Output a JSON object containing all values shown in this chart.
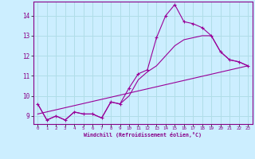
{
  "xlabel": "Windchill (Refroidissement éolien,°C)",
  "ylabel": "",
  "bg_color": "#cceeff",
  "line_color": "#990099",
  "grid_color": "#b0dde8",
  "xlim": [
    -0.5,
    23.5
  ],
  "ylim": [
    8.6,
    14.7
  ],
  "xticks": [
    0,
    1,
    2,
    3,
    4,
    5,
    6,
    7,
    8,
    9,
    10,
    11,
    12,
    13,
    14,
    15,
    16,
    17,
    18,
    19,
    20,
    21,
    22,
    23
  ],
  "yticks": [
    9,
    10,
    11,
    12,
    13,
    14
  ],
  "series1_x": [
    0,
    1,
    2,
    3,
    4,
    5,
    6,
    7,
    8,
    9,
    10,
    11,
    12,
    13,
    14,
    15,
    16,
    17,
    18,
    19,
    20,
    21,
    22,
    23
  ],
  "series1_y": [
    9.6,
    8.8,
    9.0,
    8.8,
    9.2,
    9.1,
    9.1,
    8.9,
    9.7,
    9.6,
    10.4,
    11.1,
    11.3,
    12.9,
    14.0,
    14.55,
    13.7,
    13.6,
    13.4,
    13.0,
    12.2,
    11.8,
    11.7,
    11.5
  ],
  "series2_x": [
    0,
    1,
    2,
    3,
    4,
    5,
    6,
    7,
    8,
    9,
    10,
    11,
    12,
    13,
    14,
    15,
    16,
    17,
    18,
    19,
    20,
    21,
    22,
    23
  ],
  "series2_y": [
    9.6,
    8.8,
    9.0,
    8.8,
    9.2,
    9.1,
    9.1,
    8.9,
    9.7,
    9.6,
    10.0,
    10.8,
    11.2,
    11.5,
    12.0,
    12.5,
    12.8,
    12.9,
    13.0,
    13.0,
    12.2,
    11.8,
    11.7,
    11.5
  ],
  "series3_x": [
    0,
    23
  ],
  "series3_y": [
    9.1,
    11.5
  ]
}
